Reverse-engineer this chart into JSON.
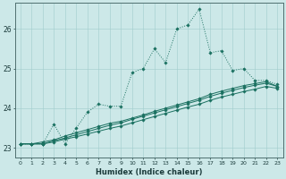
{
  "xlabel": "Humidex (Indice chaleur)",
  "bg_color": "#cce8e8",
  "line_color": "#1a7060",
  "xlim_min": -0.5,
  "xlim_max": 23.5,
  "ylim_min": 22.75,
  "ylim_max": 26.65,
  "yticks": [
    23,
    24,
    25,
    26
  ],
  "xticks": [
    0,
    1,
    2,
    3,
    4,
    5,
    6,
    7,
    8,
    9,
    10,
    11,
    12,
    13,
    14,
    15,
    16,
    17,
    18,
    19,
    20,
    21,
    22,
    23
  ],
  "series1_x": [
    0,
    1,
    2,
    3,
    4,
    5,
    6,
    7,
    8,
    9,
    10,
    11,
    12,
    13,
    14,
    15,
    16,
    17,
    18,
    19,
    20,
    21,
    22,
    23
  ],
  "series1_y": [
    23.1,
    23.1,
    23.1,
    23.6,
    23.1,
    23.5,
    23.9,
    24.1,
    24.05,
    24.05,
    24.9,
    25.0,
    25.5,
    25.15,
    26.0,
    26.1,
    26.5,
    25.4,
    25.45,
    24.95,
    25.0,
    24.7,
    24.7,
    24.6
  ],
  "series2_x": [
    0,
    1,
    2,
    3,
    4,
    5,
    6,
    7,
    8,
    9,
    10,
    11,
    12,
    13,
    14,
    15,
    16,
    17,
    18,
    19,
    20,
    21,
    22,
    23
  ],
  "series2_y": [
    23.1,
    23.1,
    23.15,
    23.2,
    23.3,
    23.38,
    23.46,
    23.54,
    23.62,
    23.67,
    23.75,
    23.83,
    23.92,
    24.0,
    24.08,
    24.16,
    24.24,
    24.35,
    24.43,
    24.5,
    24.57,
    24.62,
    24.67,
    24.55
  ],
  "series3_x": [
    0,
    1,
    2,
    3,
    4,
    5,
    6,
    7,
    8,
    9,
    10,
    11,
    12,
    13,
    14,
    15,
    16,
    17,
    18,
    19,
    20,
    21,
    22,
    23
  ],
  "series3_y": [
    23.1,
    23.1,
    23.1,
    23.18,
    23.25,
    23.33,
    23.41,
    23.49,
    23.57,
    23.63,
    23.72,
    23.8,
    23.88,
    23.96,
    24.04,
    24.12,
    24.2,
    24.3,
    24.38,
    24.45,
    24.52,
    24.58,
    24.63,
    24.55
  ],
  "series4_x": [
    0,
    1,
    2,
    3,
    4,
    5,
    6,
    7,
    8,
    9,
    10,
    11,
    12,
    13,
    14,
    15,
    16,
    17,
    18,
    19,
    20,
    21,
    22,
    23
  ],
  "series4_y": [
    23.1,
    23.1,
    23.1,
    23.15,
    23.22,
    23.28,
    23.35,
    23.42,
    23.49,
    23.55,
    23.63,
    23.71,
    23.79,
    23.87,
    23.95,
    24.03,
    24.1,
    24.2,
    24.28,
    24.35,
    24.42,
    24.48,
    24.55,
    24.5
  ]
}
